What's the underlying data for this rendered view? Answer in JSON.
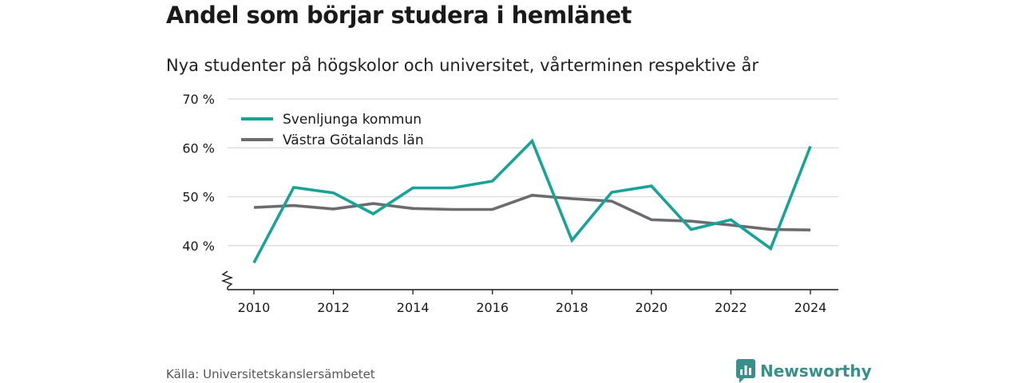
{
  "title": "Andel som börjar studera i hemlänet",
  "subtitle": "Nya studenter på högskolor och universitet, vårterminen respektive år",
  "source": "Källa: Universitetskanslersämbetet",
  "brand": {
    "name": "Newsworthy",
    "icon": "newsworthy-logo-icon",
    "color": "#3a8f8a"
  },
  "chart_data": {
    "type": "line",
    "x": [
      2010,
      2011,
      2012,
      2013,
      2014,
      2015,
      2016,
      2017,
      2018,
      2019,
      2020,
      2021,
      2022,
      2023,
      2024
    ],
    "series": [
      {
        "name": "Svenljunga kommun",
        "color": "#17a398",
        "values": [
          36.5,
          51.9,
          50.8,
          46.5,
          51.8,
          51.8,
          53.2,
          61.4,
          41.1,
          50.9,
          52.2,
          43.3,
          45.3,
          39.4,
          60.3
        ]
      },
      {
        "name": "Västra Götalands län",
        "color": "#6b6b70",
        "values": [
          47.8,
          48.2,
          47.5,
          48.6,
          47.6,
          47.4,
          47.4,
          50.3,
          49.6,
          49.1,
          45.3,
          45.0,
          44.2,
          43.3,
          43.2
        ]
      }
    ],
    "ylim": [
      31,
      70
    ],
    "yticks": [
      40,
      50,
      60,
      70
    ],
    "ytick_labels": [
      "40 %",
      "50 %",
      "60 %",
      "70 %"
    ],
    "xticks": [
      2010,
      2012,
      2014,
      2016,
      2018,
      2020,
      2022,
      2024
    ],
    "xtick_labels": [
      "2010",
      "2012",
      "2014",
      "2016",
      "2018",
      "2020",
      "2022",
      "2024"
    ],
    "grid": true,
    "legend": "top-left"
  }
}
